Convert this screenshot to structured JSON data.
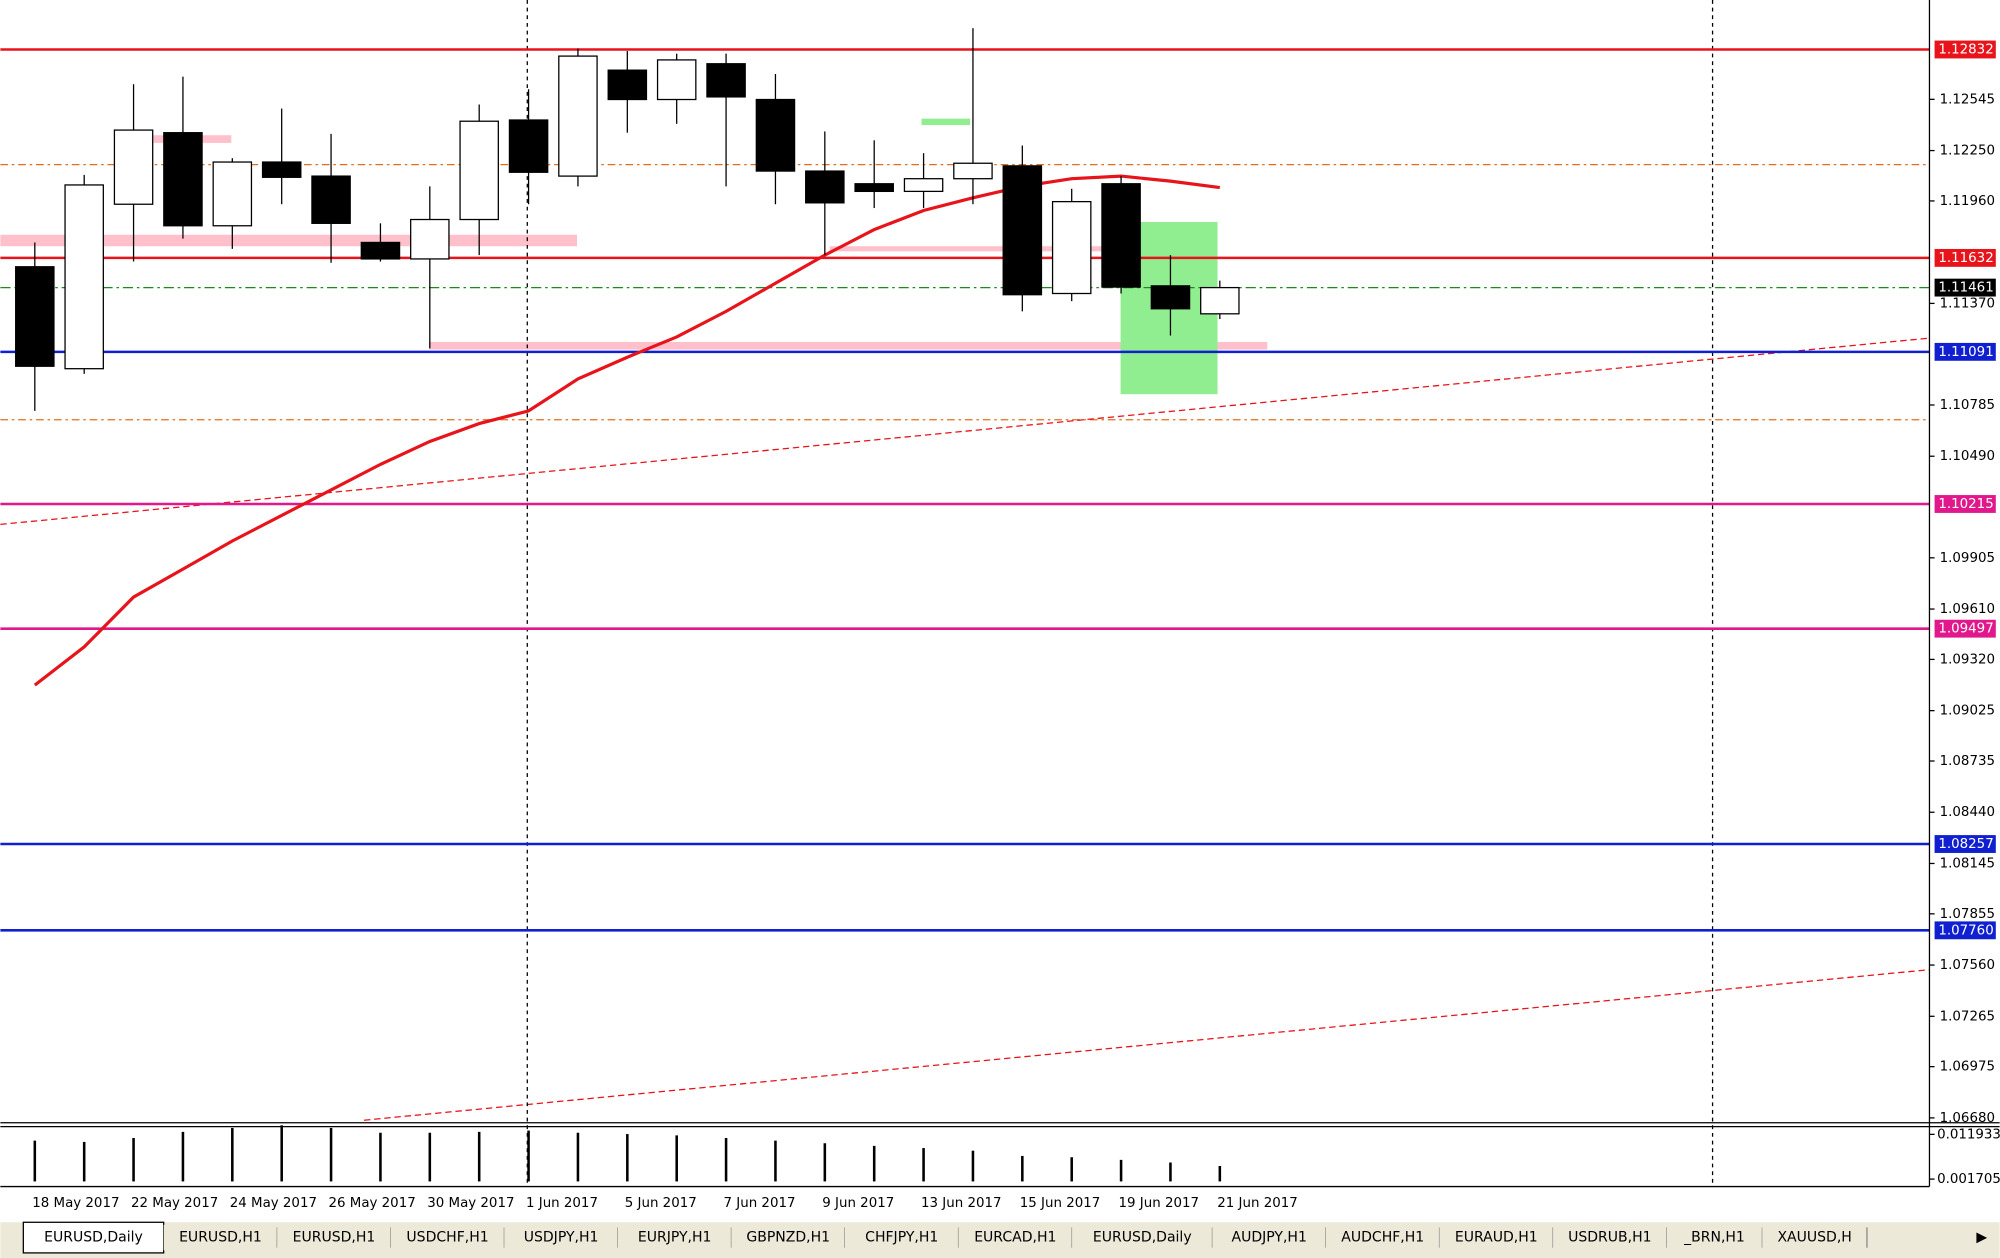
{
  "chart_data": {
    "type": "candlestick",
    "categories": [
      "18 May 2017",
      null,
      "22 May 2017",
      null,
      "24 May 2017",
      null,
      "26 May 2017",
      null,
      "30 May 2017",
      null,
      "1 Jun 2017",
      null,
      "5 Jun 2017",
      null,
      "7 Jun 2017",
      null,
      "9 Jun 2017",
      null,
      "13 Jun 2017",
      null,
      "15 Jun 2017",
      null,
      "19 Jun 2017",
      null,
      "21 Jun 2017"
    ],
    "open": [
      1.11581,
      1.10994,
      1.11941,
      1.12353,
      1.11817,
      1.12184,
      1.12103,
      1.11721,
      1.11626,
      1.11853,
      1.12426,
      1.12103,
      1.12713,
      1.12544,
      1.1275,
      1.12544,
      1.12132,
      1.12059,
      1.12015,
      1.12088,
      1.12162,
      1.11427,
      1.12059,
      1.11471,
      1.1131
    ],
    "high": [
      1.11721,
      1.1211,
      1.12632,
      1.12676,
      1.12206,
      1.12492,
      1.12346,
      1.11831,
      1.12044,
      1.12515,
      1.12603,
      1.12838,
      1.12823,
      1.12808,
      1.12808,
      1.12691,
      1.1236,
      1.12309,
      1.12235,
      1.12955,
      1.12279,
      1.1203,
      1.12103,
      1.11648,
      1.11501
    ],
    "low": [
      1.10751,
      1.10964,
      1.11611,
      1.11743,
      1.11684,
      1.11941,
      1.11604,
      1.11611,
      1.11111,
      1.11648,
      1.11941,
      1.12044,
      1.12353,
      1.12404,
      1.12044,
      1.11941,
      1.11648,
      1.11919,
      1.11919,
      1.11941,
      1.11324,
      1.11383,
      1.11427,
      1.11185,
      1.1128
    ],
    "close": [
      1.11008,
      1.12052,
      1.12368,
      1.11817,
      1.12184,
      1.12096,
      1.11831,
      1.11626,
      1.11853,
      1.12419,
      1.12125,
      1.12794,
      1.12544,
      1.12772,
      1.12559,
      1.12132,
      1.11949,
      1.12015,
      1.12088,
      1.12177,
      1.1142,
      1.11956,
      1.11464,
      1.11339,
      1.11461
    ],
    "up_color": "#ffffff",
    "down_color": "#000000",
    "ma": {
      "color": "#e8141b",
      "values": [
        1.09172,
        1.09392,
        1.09679,
        1.0984,
        1.10002,
        1.10149,
        1.10296,
        1.10443,
        1.10575,
        1.10678,
        1.10751,
        1.10935,
        1.1106,
        1.11177,
        1.11324,
        1.11486,
        1.11648,
        1.11795,
        1.11905,
        1.11978,
        1.12044,
        1.12088,
        1.12103,
        1.12074,
        1.12037
      ]
    },
    "levels": [
      {
        "value": 1.12832,
        "color": "#e8141b"
      },
      {
        "value": 1.11632,
        "color": "#e8141b"
      },
      {
        "value": 1.11461,
        "color": "#000000",
        "line_color": "#1e8a1e",
        "style": "dashdot"
      },
      {
        "value": 1.11091,
        "color": "#1020d0"
      },
      {
        "value": 1.10215,
        "color": "#e0188c"
      },
      {
        "value": 1.09497,
        "color": "#e0188c"
      },
      {
        "value": 1.08257,
        "color": "#1020d0"
      },
      {
        "value": 1.0776,
        "label": "1.07760",
        "color": "#1020d0"
      }
    ],
    "ylim": [
      1.06652,
      1.13117
    ],
    "yticks": [
      1.12545,
      {
        "value": 1.1225,
        "label": "1.12250"
      },
      {
        "value": 1.1196,
        "label": "1.11960"
      },
      {
        "value": 1.1137,
        "label": "1.11370"
      },
      1.10785,
      {
        "value": 1.1049,
        "label": "1.10490"
      },
      1.09905,
      {
        "value": 1.0961,
        "label": "1.09610"
      },
      {
        "value": 1.0932,
        "label": "1.09320"
      },
      1.09025,
      1.08735,
      {
        "value": 1.0844,
        "label": "1.08440"
      },
      1.08145,
      1.07855,
      {
        "value": 1.0756,
        "label": "1.07560"
      },
      1.07265,
      1.06975,
      {
        "value": 1.0668,
        "label": "1.06680"
      }
    ],
    "indicator": {
      "color": "#000000",
      "values": [
        0.0105,
        0.0102,
        0.0111,
        0.0125,
        0.0134,
        0.014,
        0.0134,
        0.0123,
        0.0123,
        0.0125,
        0.0128,
        0.0123,
        0.012,
        0.0117,
        0.0111,
        0.0105,
        0.0099,
        0.0093,
        0.0088,
        0.0082,
        0.007,
        0.0067,
        0.0061,
        0.0055,
        0.0047
      ],
      "ylim": [
        0,
        0.014
      ],
      "yticks": [
        0.011933,
        0.001705
      ]
    },
    "tabs": [
      "EURUSD,Daily",
      "EURUSD,H1",
      "EURUSD,H1",
      "USDCHF,H1",
      "USDJPY,H1",
      "EURJPY,H1",
      "GBPNZD,H1",
      "CHFJPY,H1",
      "EURCAD,H1",
      "EURUSD,Daily",
      "AUDJPY,H1",
      "AUDCHF,H1",
      "EURAUD,H1",
      "USDRUB,H1",
      "_BRN,H1",
      "XAUUSD,H"
    ],
    "active_tab": 0
  }
}
